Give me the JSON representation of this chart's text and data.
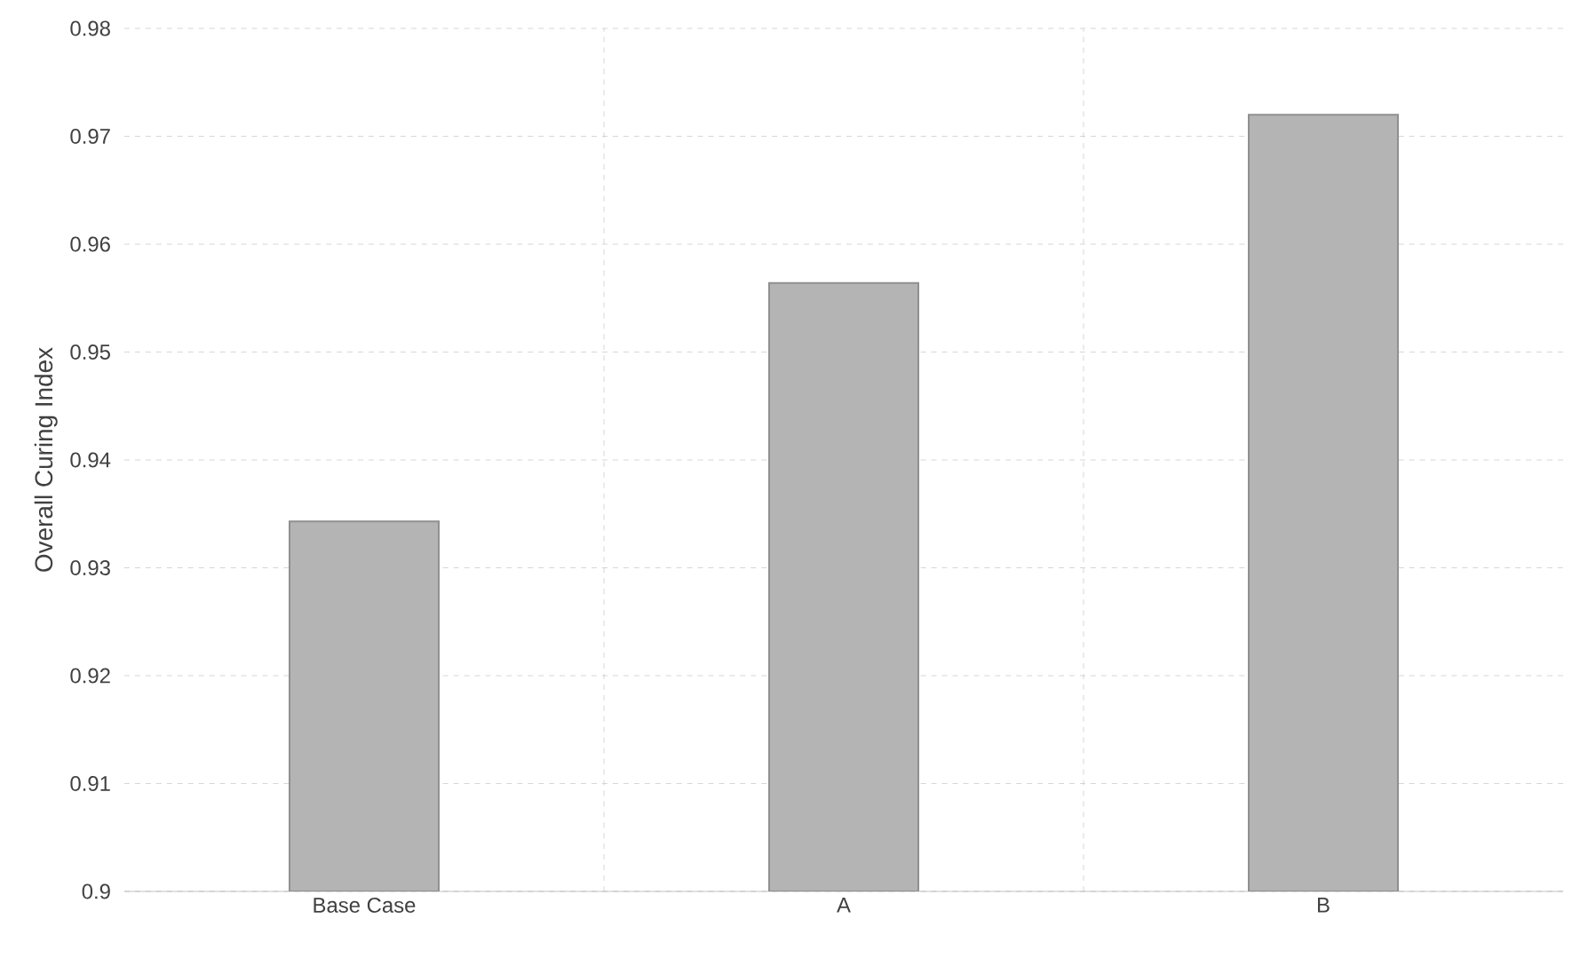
{
  "chart_data": {
    "type": "bar",
    "ylabel": "Overall Curing Index",
    "categories": [
      "Base Case",
      "A",
      "B"
    ],
    "values": [
      0.9343,
      0.9564,
      0.972
    ],
    "color": "#b4b4b4",
    "ylim": [
      0.9,
      0.98
    ],
    "yticks": [
      0.9,
      0.91,
      0.92,
      0.93,
      0.94,
      0.95,
      0.96,
      0.97,
      0.98
    ],
    "grid": true
  }
}
